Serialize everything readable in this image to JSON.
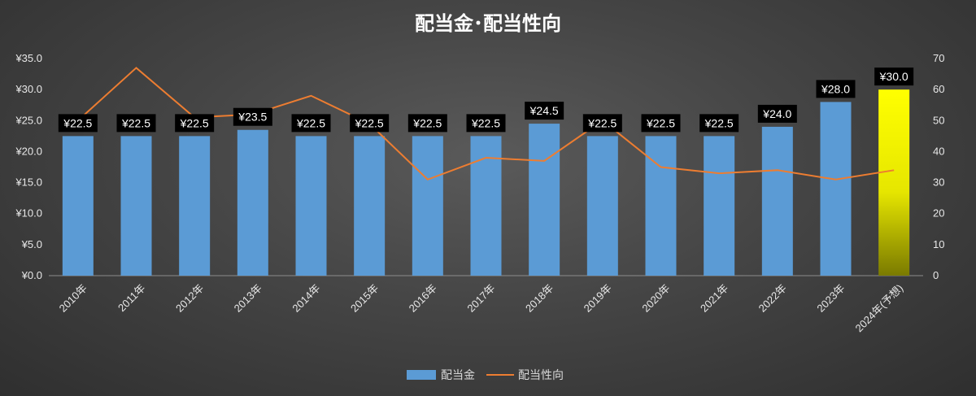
{
  "chart_data": {
    "type": "bar",
    "title": "配当金･配当性向",
    "categories": [
      "2010年",
      "2011年",
      "2012年",
      "2013年",
      "2014年",
      "2015年",
      "2016年",
      "2017年",
      "2018年",
      "2019年",
      "2020年",
      "2021年",
      "2022年",
      "2023年",
      "2024年(予想)"
    ],
    "series": [
      {
        "name": "配当金",
        "type": "bar",
        "axis": "left",
        "color": "#5b9bd5",
        "highlight_color": "#ffff00",
        "highlight_index": 14,
        "values": [
          22.5,
          22.5,
          22.5,
          23.5,
          22.5,
          22.5,
          22.5,
          22.5,
          24.5,
          22.5,
          22.5,
          22.5,
          24.0,
          28.0,
          30.0
        ],
        "labels": [
          "¥22.5",
          "¥22.5",
          "¥22.5",
          "¥23.5",
          "¥22.5",
          "¥22.5",
          "¥22.5",
          "¥22.5",
          "¥24.5",
          "¥22.5",
          "¥22.5",
          "¥22.5",
          "¥24.0",
          "¥28.0",
          "¥30.0"
        ]
      },
      {
        "name": "配当性向",
        "type": "line",
        "axis": "right",
        "color": "#ed7d31",
        "values": [
          50,
          67,
          51,
          52,
          58,
          49,
          31,
          38,
          37,
          50,
          35,
          33,
          34,
          31,
          34
        ]
      }
    ],
    "y_left": {
      "min": 0,
      "max": 35,
      "step": 5,
      "tick_labels": [
        "¥0.0",
        "¥5.0",
        "¥10.0",
        "¥15.0",
        "¥20.0",
        "¥25.0",
        "¥30.0",
        "¥35.0"
      ]
    },
    "y_right": {
      "min": 0,
      "max": 70,
      "step": 10,
      "tick_labels": [
        "0",
        "10",
        "20",
        "30",
        "40",
        "50",
        "60",
        "70"
      ]
    },
    "grid": false,
    "legend_position": "bottom"
  }
}
